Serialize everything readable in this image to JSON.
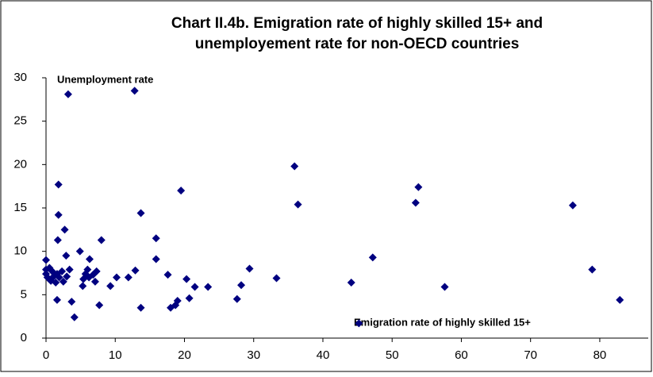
{
  "chart_data": {
    "type": "scatter",
    "title_lines": [
      "Chart II.4b. Emigration rate of highly skilled 15+ and",
      "unemployement rate for non-OECD countries"
    ],
    "annotations": [
      "Unemployment rate",
      "Emigration rate of highly skilled 15+"
    ],
    "color": "#000080",
    "xlim": [
      0,
      87
    ],
    "xticks": [
      0,
      10,
      20,
      30,
      40,
      50,
      60,
      70,
      80
    ],
    "ylim": [
      0,
      30
    ],
    "yticks": [
      0,
      5,
      10,
      15,
      20,
      25,
      30
    ],
    "x": [
      3.2,
      12.8,
      1.8,
      1.8,
      1.7,
      2.7,
      2.9,
      0,
      35.9,
      36.4,
      19.5,
      13.7,
      53.8,
      53.4,
      76.1,
      78.9,
      82.9,
      57.6,
      47.2,
      44.1,
      45.2,
      33.3,
      29.4,
      28.2,
      27.6,
      23.4,
      21.5,
      20.7,
      20.3,
      19.0,
      18.7,
      18.0,
      17.6,
      15.9,
      15.9,
      13.7,
      12.9,
      11.9,
      10.2,
      9.3,
      8.0,
      7.7,
      6.3,
      4.9,
      4.1,
      3.7,
      1.6,
      0,
      0,
      0.2,
      0.5,
      0.7,
      0.9,
      1.1,
      1.4,
      1.6,
      1.9,
      2.3,
      2.5,
      3.0,
      3.4,
      5.4,
      5.7,
      6.2,
      6.8,
      7.1,
      7.3,
      5.3,
      6.0
    ],
    "values": [
      28.1,
      28.5,
      17.7,
      14.2,
      11.3,
      12.5,
      9.5,
      9.0,
      19.8,
      15.4,
      17.0,
      14.4,
      17.4,
      15.6,
      15.3,
      7.9,
      4.4,
      5.9,
      9.3,
      6.4,
      1.7,
      6.9,
      8.0,
      6.1,
      4.5,
      5.9,
      5.9,
      4.6,
      6.8,
      4.3,
      3.8,
      3.5,
      7.3,
      9.1,
      11.5,
      3.5,
      7.8,
      7.0,
      7.0,
      6.0,
      11.3,
      3.8,
      9.1,
      10.0,
      2.4,
      4.2,
      4.4,
      7.9,
      7.4,
      7.0,
      8.1,
      6.6,
      7.7,
      7.1,
      6.4,
      7.4,
      7.0,
      7.7,
      6.5,
      7.1,
      7.9,
      6.8,
      7.4,
      7.0,
      7.3,
      6.5,
      7.7,
      6.0,
      7.9
    ],
    "grid": false
  }
}
